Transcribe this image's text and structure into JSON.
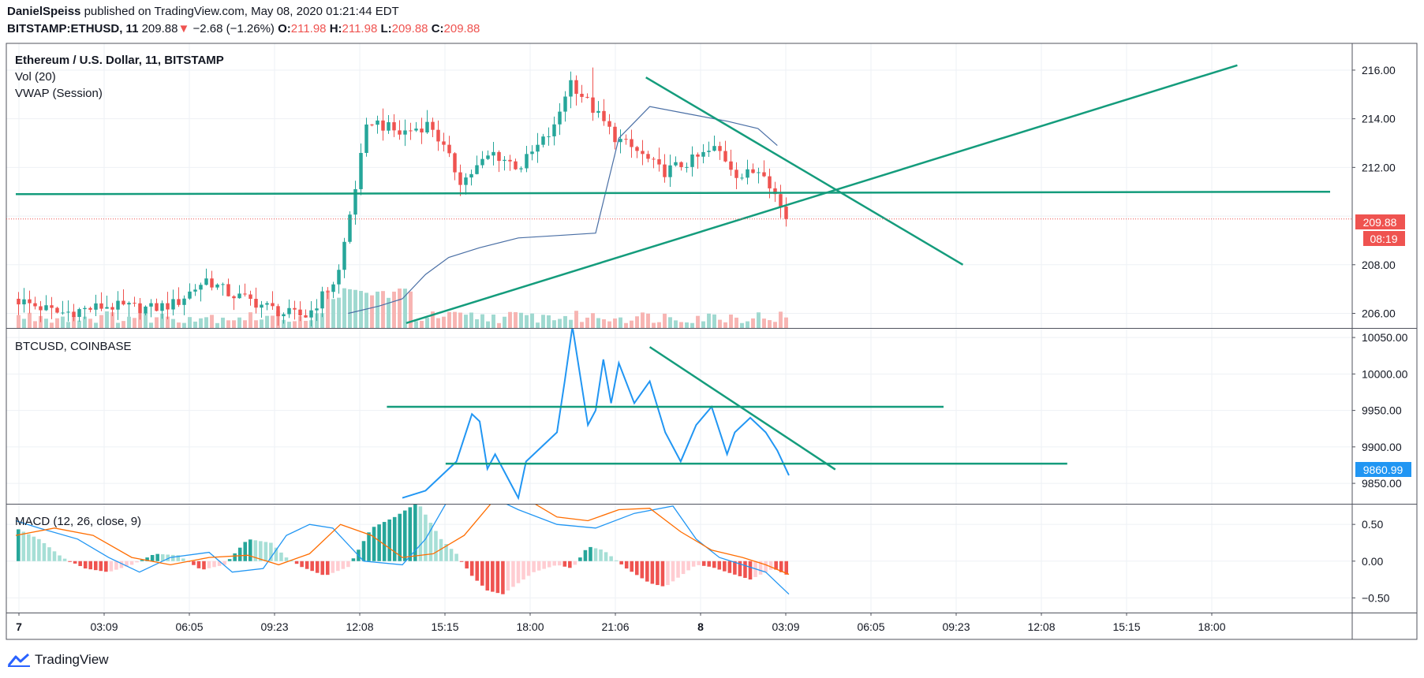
{
  "header": {
    "author": "DanielSpeiss",
    "published_text": "published on TradingView.com, May 08, 2020 01:21:44 EDT",
    "symbol": "BITSTAMP:ETHUSD, 11",
    "last": "209.88",
    "change": "−2.68 (−1.26%)",
    "o_label": "O:",
    "o": "211.98",
    "h_label": "H:",
    "h": "211.98",
    "l_label": "L:",
    "l": "209.88",
    "c_label": "C:",
    "c": "209.88"
  },
  "pane1": {
    "legend": [
      "Ethereum / U.S. Dollar, 11, BITSTAMP",
      "Vol (20)",
      "VWAP (Session)"
    ],
    "price_tag": "209.88",
    "countdown": "08:19"
  },
  "pane2": {
    "legend": "BTCUSD, COINBASE",
    "price_tag": "9860.99"
  },
  "pane3": {
    "legend": "MACD (12, 26, close, 9)"
  },
  "footer": {
    "brand": "TradingView"
  },
  "colors": {
    "up": "#26a69a",
    "down": "#ef5350",
    "trend": "#149c7c",
    "btc": "#2196f3",
    "macd": "#2196f3",
    "signal": "#ff6d00",
    "vwap": "#4a6fa5",
    "hist_up": "#26a69a",
    "hist_up_light": "#a6dfd6",
    "hist_down": "#ef5350",
    "hist_down_light": "#ffcdd2"
  },
  "chart_data": [
    {
      "type": "candlestick",
      "title": "Ethereum / U.S. Dollar, 11, BITSTAMP",
      "symbol": "BITSTAMP:ETHUSD",
      "x_ticks": [
        "7",
        "03:09",
        "06:05",
        "09:23",
        "12:08",
        "15:15",
        "18:00",
        "21:06",
        "8",
        "03:09",
        "06:05",
        "09:23",
        "12:08",
        "15:15",
        "18:00"
      ],
      "y_ticks": [
        206.0,
        208.0,
        210.0,
        212.0,
        214.0,
        216.0
      ],
      "y_tick_labels": [
        "206.00",
        "208.00",
        "212.00",
        "214.00",
        "216.00"
      ],
      "ylim": [
        205.4,
        217.1
      ],
      "last_close": 209.88,
      "close_path_t": [
        0,
        0.06,
        0.12,
        0.18,
        0.21,
        0.25,
        0.28,
        0.31,
        0.35,
        0.38,
        0.42,
        0.46,
        0.5,
        0.54,
        0.58,
        0.62,
        0.655,
        0.68,
        0.7,
        0.72,
        0.75,
        0.78,
        0.81,
        0.84,
        0.88,
        0.91,
        0.94,
        0.97,
        1.0
      ],
      "close_path_v": [
        206.6,
        206.0,
        206.3,
        206.2,
        206.4,
        207.4,
        206.8,
        206.5,
        206.0,
        205.9,
        207.5,
        214.0,
        213.4,
        213.8,
        211.4,
        212.6,
        212.0,
        212.9,
        213.6,
        215.6,
        214.4,
        213.2,
        212.6,
        211.8,
        212.3,
        212.8,
        211.6,
        211.98,
        209.88
      ],
      "vwap_t": [
        0.43,
        0.47,
        0.5,
        0.53,
        0.56,
        0.6,
        0.65,
        0.7,
        0.75,
        0.78,
        0.82,
        0.87,
        0.92,
        0.96,
        0.985
      ],
      "vwap_v": [
        206.0,
        206.3,
        206.6,
        207.6,
        208.3,
        208.7,
        209.1,
        209.2,
        209.3,
        213.2,
        214.5,
        214.2,
        213.9,
        213.6,
        212.9
      ],
      "trendlines": [
        {
          "name": "horizontal-support",
          "x1_t": 0.0,
          "y1": 210.9,
          "x2_t": 1.7,
          "y2": 211.0
        },
        {
          "name": "rising-support",
          "x1_t": 0.505,
          "y1": 205.6,
          "x2_t": 1.58,
          "y2": 216.2
        },
        {
          "name": "falling-resistance",
          "x1_t": 0.815,
          "y1": 215.7,
          "x2_t": 1.225,
          "y2": 208.0
        }
      ]
    },
    {
      "type": "line",
      "title": "BTCUSD, COINBASE",
      "y_ticks": [
        9850.0,
        9900.0,
        9950.0,
        10000.0,
        10050.0
      ],
      "y_tick_labels": [
        "9850.00",
        "9900.00",
        "9950.00",
        "10000.00",
        "10050.00"
      ],
      "ylim": [
        9822,
        10062
      ],
      "last": 9860.99,
      "t": [
        0.5,
        0.53,
        0.55,
        0.57,
        0.59,
        0.6,
        0.61,
        0.62,
        0.64,
        0.65,
        0.66,
        0.68,
        0.7,
        0.71,
        0.72,
        0.74,
        0.75,
        0.76,
        0.77,
        0.78,
        0.8,
        0.82,
        0.84,
        0.86,
        0.88,
        0.9,
        0.92,
        0.93,
        0.95,
        0.97,
        0.985,
        1.0
      ],
      "v": [
        9830,
        9840,
        9860,
        9880,
        9945,
        9935,
        9870,
        9890,
        9850,
        9830,
        9880,
        9900,
        9920,
        9990,
        10065,
        9930,
        9950,
        10020,
        9960,
        10015,
        9960,
        9990,
        9920,
        9880,
        9930,
        9955,
        9890,
        9920,
        9940,
        9920,
        9895,
        9861
      ],
      "trendlines": [
        {
          "name": "upper-horizontal",
          "x1_t": 0.48,
          "y1": 9955,
          "x2_t": 1.2,
          "y2": 9955
        },
        {
          "name": "lower-horizontal",
          "x1_t": 0.556,
          "y1": 9877,
          "x2_t": 1.36,
          "y2": 9877
        },
        {
          "name": "falling-resistance",
          "x1_t": 0.82,
          "y1": 10037,
          "x2_t": 1.06,
          "y2": 9869
        }
      ]
    },
    {
      "type": "macd",
      "title": "MACD (12, 26, close, 9)",
      "y_ticks": [
        -0.5,
        0.0,
        0.5
      ],
      "y_tick_labels": [
        "−0.50",
        "0.00",
        "0.50"
      ],
      "ylim": [
        -0.7,
        0.77
      ],
      "macd_t": [
        0,
        0.03,
        0.08,
        0.12,
        0.16,
        0.2,
        0.25,
        0.28,
        0.32,
        0.35,
        0.38,
        0.41,
        0.45,
        0.5,
        0.53,
        0.56,
        0.6,
        0.65,
        0.7,
        0.75,
        0.8,
        0.85,
        0.88,
        0.91,
        0.94,
        0.97,
        1.0
      ],
      "macd_v": [
        0.55,
        0.45,
        0.3,
        0.05,
        -0.15,
        0.05,
        0.12,
        -0.15,
        -0.1,
        0.35,
        0.5,
        0.45,
        0.0,
        -0.05,
        0.3,
        0.85,
        0.95,
        0.7,
        0.5,
        0.45,
        0.65,
        0.75,
        0.3,
        0.05,
        -0.05,
        -0.15,
        -0.45
      ],
      "signal_t": [
        0,
        0.05,
        0.1,
        0.15,
        0.2,
        0.25,
        0.3,
        0.34,
        0.38,
        0.42,
        0.46,
        0.5,
        0.54,
        0.58,
        0.62,
        0.66,
        0.7,
        0.74,
        0.78,
        0.82,
        0.86,
        0.9,
        0.94,
        0.97,
        1.0
      ],
      "signal_v": [
        0.35,
        0.45,
        0.35,
        0.05,
        -0.05,
        0.05,
        0.08,
        -0.05,
        0.1,
        0.5,
        0.35,
        0.05,
        0.1,
        0.35,
        0.85,
        0.85,
        0.6,
        0.55,
        0.7,
        0.72,
        0.4,
        0.15,
        0.05,
        -0.05,
        -0.18
      ],
      "hist_t": [
        0,
        0.03,
        0.06,
        0.09,
        0.12,
        0.15,
        0.18,
        0.21,
        0.24,
        0.27,
        0.3,
        0.33,
        0.35,
        0.37,
        0.4,
        0.43,
        0.46,
        0.49,
        0.52,
        0.55,
        0.57,
        0.59,
        0.61,
        0.63,
        0.65,
        0.67,
        0.7,
        0.72,
        0.74,
        0.76,
        0.79,
        0.82,
        0.84,
        0.86,
        0.88,
        0.9,
        0.92,
        0.95,
        0.98,
        1.0
      ],
      "hist_v": [
        0.45,
        0.3,
        0.05,
        -0.1,
        -0.15,
        -0.05,
        0.1,
        0.08,
        -0.12,
        -0.05,
        0.3,
        0.25,
        0.05,
        -0.08,
        -0.2,
        -0.08,
        0.45,
        0.6,
        0.8,
        0.3,
        0.1,
        -0.2,
        -0.4,
        -0.45,
        -0.3,
        -0.15,
        -0.05,
        -0.1,
        0.2,
        0.15,
        -0.1,
        -0.3,
        -0.35,
        -0.2,
        -0.05,
        -0.08,
        -0.15,
        -0.25,
        -0.1,
        -0.2
      ]
    }
  ]
}
